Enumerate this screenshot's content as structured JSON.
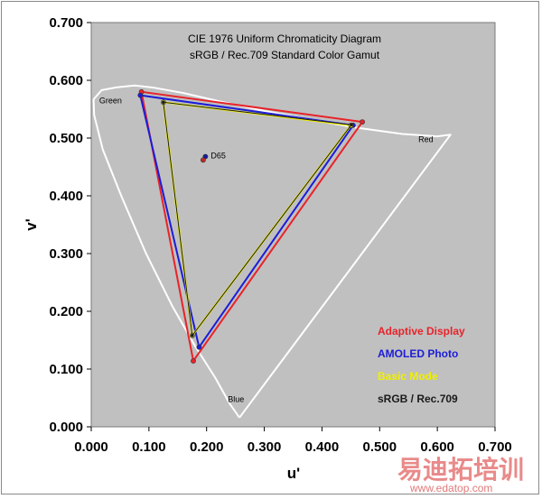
{
  "chart_data": {
    "type": "scatter",
    "title": "CIE 1976 Uniform Chromaticity Diagram",
    "subtitle": "sRGB / Rec.709 Standard Color Gamut",
    "xlabel": "u'",
    "ylabel": "v'",
    "xlim": [
      0,
      0.7
    ],
    "ylim": [
      0,
      0.7
    ],
    "xticks": [
      "0.000",
      "0.100",
      "0.200",
      "0.300",
      "0.400",
      "0.500",
      "0.600",
      "0.700"
    ],
    "yticks": [
      "0.000",
      "0.100",
      "0.200",
      "0.300",
      "0.400",
      "0.500",
      "0.600",
      "0.700"
    ],
    "grid": false,
    "legend_position": "bottom-right",
    "locus": {
      "color": "#ffffff",
      "points": [
        [
          0.257,
          0.016
        ],
        [
          0.24,
          0.04
        ],
        [
          0.215,
          0.085
        ],
        [
          0.18,
          0.14
        ],
        [
          0.14,
          0.21
        ],
        [
          0.095,
          0.3
        ],
        [
          0.052,
          0.4
        ],
        [
          0.02,
          0.48
        ],
        [
          0.005,
          0.54
        ],
        [
          0.004,
          0.567
        ],
        [
          0.018,
          0.583
        ],
        [
          0.045,
          0.588
        ],
        [
          0.075,
          0.591
        ],
        [
          0.11,
          0.587
        ],
        [
          0.16,
          0.578
        ],
        [
          0.22,
          0.564
        ],
        [
          0.3,
          0.547
        ],
        [
          0.38,
          0.532
        ],
        [
          0.46,
          0.518
        ],
        [
          0.54,
          0.507
        ],
        [
          0.6,
          0.503
        ],
        [
          0.623,
          0.506
        ],
        [
          0.257,
          0.016
        ]
      ]
    },
    "region_labels": [
      {
        "text": "Green",
        "u": 0.014,
        "v": 0.56
      },
      {
        "text": "Red",
        "u": 0.567,
        "v": 0.493
      },
      {
        "text": "Blue",
        "u": 0.237,
        "v": 0.043
      }
    ],
    "white_point": {
      "label": "D65",
      "points": [
        {
          "u": 0.198,
          "v": 0.468,
          "color": "#1a1aa0"
        },
        {
          "u": 0.194,
          "v": 0.462,
          "color": "#c22a2a"
        }
      ]
    },
    "series": [
      {
        "name": "Adaptive Display",
        "color": "#e8232a",
        "points": [
          [
            0.47,
            0.528
          ],
          [
            0.087,
            0.58
          ],
          [
            0.177,
            0.114
          ]
        ]
      },
      {
        "name": "AMOLED Photo",
        "color": "#1c1cd8",
        "points": [
          [
            0.454,
            0.522
          ],
          [
            0.085,
            0.574
          ],
          [
            0.187,
            0.138
          ]
        ]
      },
      {
        "name": "Basic Mode",
        "color": "#f0f000",
        "points": [
          [
            0.45,
            0.522
          ],
          [
            0.125,
            0.562
          ],
          [
            0.175,
            0.158
          ]
        ]
      },
      {
        "name": "sRGB / Rec.709",
        "color": "#1a1a1a",
        "points": [
          [
            0.451,
            0.523
          ],
          [
            0.125,
            0.562
          ],
          [
            0.175,
            0.158
          ]
        ]
      }
    ]
  },
  "watermark": {
    "text": "易迪拓培训",
    "url": "www.edatop.com"
  }
}
